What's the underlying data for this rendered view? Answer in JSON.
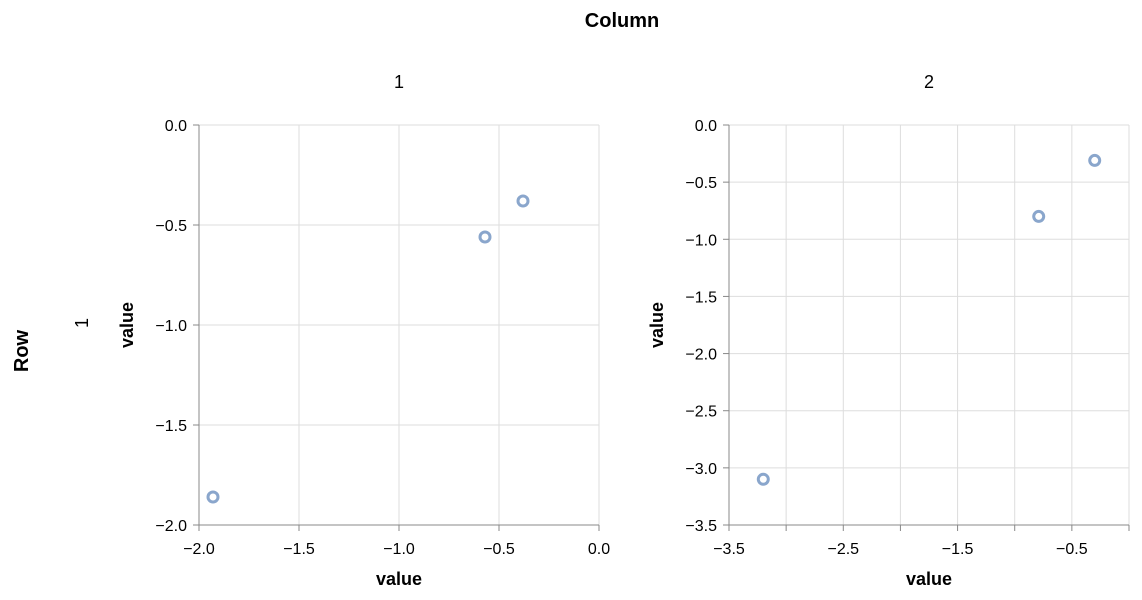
{
  "header": {
    "column_title": "Column",
    "row_title": "Row",
    "row_label": "1"
  },
  "colors": {
    "point_stroke": "#8aa6cc",
    "grid": "#dddddd",
    "domain": "#888888"
  },
  "chart_data": [
    {
      "type": "scatter",
      "title": "1",
      "xlabel": "value",
      "ylabel": "value",
      "xlim": [
        -2.0,
        0.0
      ],
      "ylim": [
        -2.0,
        0.0
      ],
      "x_ticks": [
        -2.0,
        -1.5,
        -1.0,
        -0.5,
        0.0
      ],
      "y_ticks": [
        0.0,
        -0.5,
        -1.0,
        -1.5,
        -2.0
      ],
      "x_tick_labels": [
        "−2.0",
        "−1.5",
        "−1.0",
        "−0.5",
        "0.0"
      ],
      "y_tick_labels": [
        "0.0",
        "−0.5",
        "−1.0",
        "−1.5",
        "−2.0"
      ],
      "x_grid": [
        -2.0,
        -1.5,
        -1.0,
        -0.5,
        0.0
      ],
      "points": [
        {
          "x": -1.93,
          "y": -1.86
        },
        {
          "x": -0.57,
          "y": -0.56
        },
        {
          "x": -0.38,
          "y": -0.38
        }
      ],
      "grid": true
    },
    {
      "type": "scatter",
      "title": "2",
      "xlabel": "value",
      "ylabel": "value",
      "xlim": [
        -3.5,
        0.0
      ],
      "ylim": [
        -3.5,
        0.0
      ],
      "x_ticks": [
        -3.5,
        -3.0,
        -2.5,
        -2.0,
        -1.5,
        -1.0,
        -0.5,
        0.0
      ],
      "x_labeled_ticks": [
        -3.5,
        -2.5,
        -1.5,
        -0.5
      ],
      "x_tick_labels": [
        "−3.5",
        "−2.5",
        "−1.5",
        "−0.5"
      ],
      "y_ticks": [
        0.0,
        -0.5,
        -1.0,
        -1.5,
        -2.0,
        -2.5,
        -3.0,
        -3.5
      ],
      "y_tick_labels": [
        "0.0",
        "−0.5",
        "−1.0",
        "−1.5",
        "−2.0",
        "−2.5",
        "−3.0",
        "−3.5"
      ],
      "x_grid": [
        -3.5,
        -3.0,
        -2.5,
        -2.0,
        -1.5,
        -1.0,
        -0.5,
        0.0
      ],
      "points": [
        {
          "x": -3.2,
          "y": -3.1
        },
        {
          "x": -0.79,
          "y": -0.8
        },
        {
          "x": -0.3,
          "y": -0.31
        }
      ],
      "grid": true
    }
  ]
}
